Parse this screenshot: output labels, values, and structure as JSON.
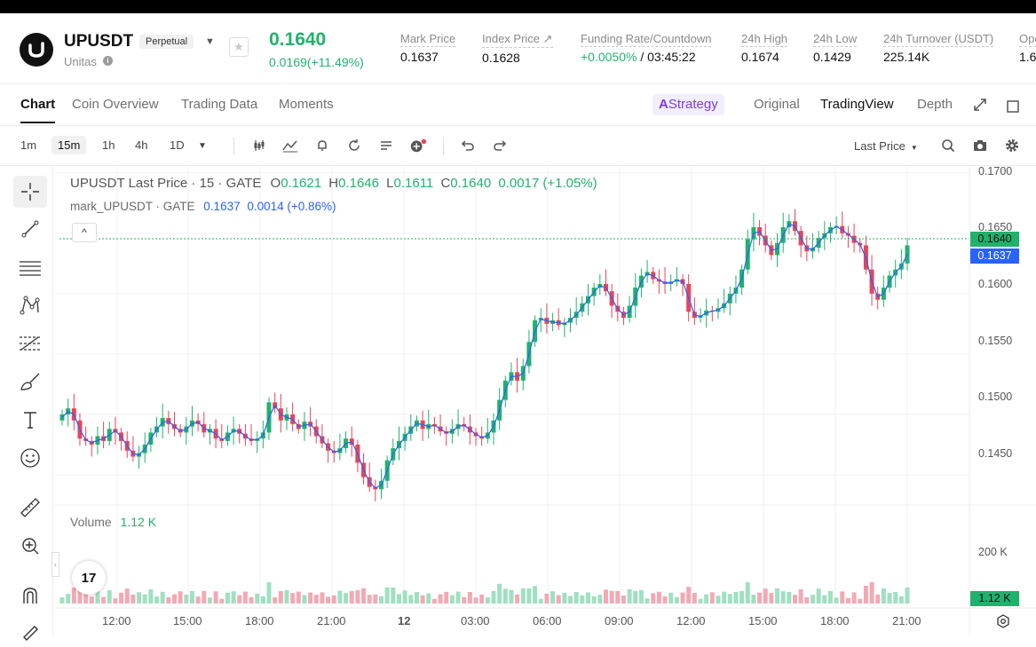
{
  "header": {
    "symbol": "UPUSDT",
    "contract_type": "Perpetual",
    "subtitle": "Unitas",
    "last_price": "0.1640",
    "change": "0.0169(+11.49%)",
    "stats": [
      {
        "label": "Mark Price",
        "value": "0.1637"
      },
      {
        "label": "Index Price ↗",
        "value": "0.1628"
      },
      {
        "label": "Funding Rate/Countdown",
        "value_green": "+0.0050%",
        "value": " / 03:45:22"
      },
      {
        "label": "24h High",
        "value": "0.1674"
      },
      {
        "label": "24h Low",
        "value": "0.1429"
      },
      {
        "label": "24h Turnover (USDT)",
        "value": "225.14K"
      },
      {
        "label": "Ope",
        "value": "1.6"
      }
    ]
  },
  "tabs": [
    "Chart",
    "Coin Overview",
    "Trading Data",
    "Moments"
  ],
  "views": {
    "strategy": "Strategy",
    "original": "Original",
    "tradingview": "TradingView",
    "depth": "Depth"
  },
  "timeframes": [
    "1m",
    "15m",
    "1h",
    "4h",
    "1D"
  ],
  "toolbar": {
    "price_type": "Last Price"
  },
  "legend": {
    "title": "UPUSDT Last Price · 15 · GATE",
    "o_label": "O",
    "o": "0.1621",
    "h_label": "H",
    "h": "0.1646",
    "l_label": "L",
    "l": "0.1611",
    "c_label": "C",
    "c": "0.1640",
    "chg": "0.0017 (+1.05%)",
    "mark_title": "mark_UPUSDT · GATE",
    "mark_value": "0.1637",
    "mark_chg": "0.0014 (+0.86%)"
  },
  "volume": {
    "label": "Volume",
    "value": "1.12 K",
    "axis_label": "200 K",
    "tag": "1.12 K"
  },
  "price_axis": [
    "0.1700",
    "0.1650",
    "0.1600",
    "0.1550",
    "0.1500",
    "0.1450"
  ],
  "price_tags": {
    "last": "0.1640",
    "mark": "0.1637"
  },
  "time_axis": [
    "12:00",
    "15:00",
    "18:00",
    "21:00",
    "12",
    "03:00",
    "06:00",
    "09:00",
    "12:00",
    "15:00",
    "18:00",
    "21:00"
  ],
  "colors": {
    "up": "#20b26c",
    "down": "#e9445a",
    "mark": "#2962ff",
    "strategy": "#7b3fe4"
  },
  "chart_data": {
    "type": "line",
    "ylim": [
      0.1425,
      0.1705
    ],
    "candles_close": [
      0.15,
      0.1505,
      0.1495,
      0.148,
      0.1478,
      0.1475,
      0.1482,
      0.1478,
      0.1488,
      0.1485,
      0.1478,
      0.147,
      0.1465,
      0.1468,
      0.1475,
      0.1485,
      0.149,
      0.1497,
      0.1492,
      0.1488,
      0.1485,
      0.149,
      0.1495,
      0.1492,
      0.1485,
      0.1488,
      0.148,
      0.1478,
      0.1485,
      0.1488,
      0.1484,
      0.148,
      0.1478,
      0.148,
      0.1485,
      0.151,
      0.1505,
      0.1495,
      0.15,
      0.1492,
      0.1488,
      0.1494,
      0.149,
      0.1482,
      0.1476,
      0.147,
      0.1468,
      0.1472,
      0.148,
      0.1475,
      0.146,
      0.1448,
      0.144,
      0.1438,
      0.1445,
      0.1462,
      0.1472,
      0.1478,
      0.1484,
      0.149,
      0.1495,
      0.1488,
      0.1492,
      0.149,
      0.1486,
      0.1484,
      0.1488,
      0.1492,
      0.149,
      0.1485,
      0.1482,
      0.148,
      0.1485,
      0.1495,
      0.1512,
      0.1528,
      0.1535,
      0.1528,
      0.154,
      0.156,
      0.1578,
      0.158,
      0.1575,
      0.1578,
      0.1574,
      0.1576,
      0.158,
      0.1585,
      0.1592,
      0.1598,
      0.1605,
      0.1608,
      0.1602,
      0.159,
      0.1585,
      0.158,
      0.159,
      0.1605,
      0.1615,
      0.1618,
      0.1612,
      0.161,
      0.1608,
      0.161,
      0.1612,
      0.1608,
      0.1585,
      0.158,
      0.1582,
      0.1586,
      0.1585,
      0.1588,
      0.1592,
      0.16,
      0.1605,
      0.162,
      0.1645,
      0.1655,
      0.1648,
      0.164,
      0.1632,
      0.1642,
      0.1655,
      0.166,
      0.1652,
      0.164,
      0.1635,
      0.1638,
      0.1646,
      0.165,
      0.1655,
      0.1656,
      0.165,
      0.1648,
      0.1642,
      0.164,
      0.162,
      0.16,
      0.1595,
      0.1605,
      0.1615,
      0.162,
      0.1625,
      0.164
    ]
  }
}
